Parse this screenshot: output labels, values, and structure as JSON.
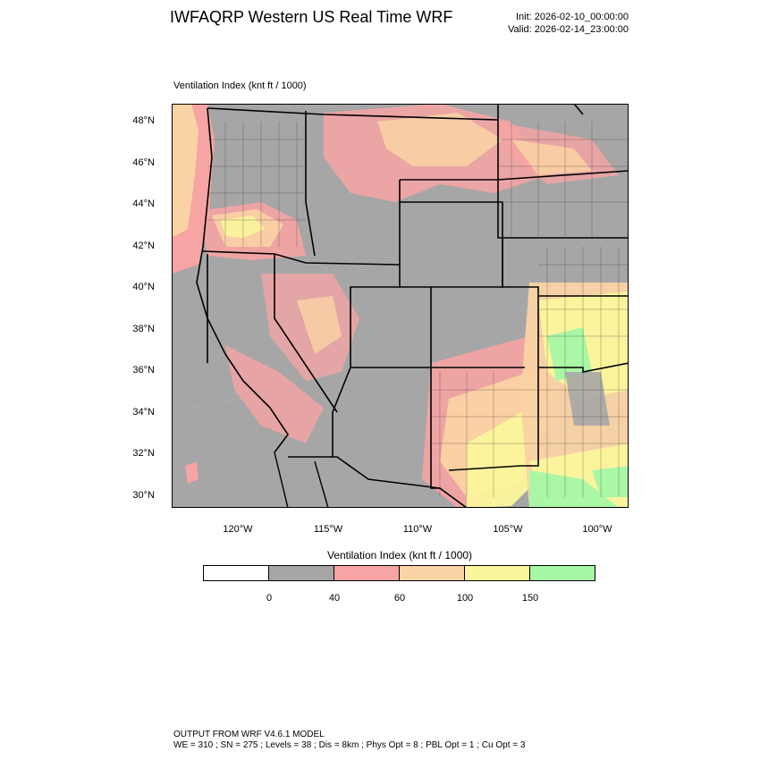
{
  "header": {
    "title": "IWFAQRP Western US Real Time WRF",
    "init": "Init: 2026-02-10_00:00:00",
    "valid": "Valid: 2026-02-14_23:00:00"
  },
  "map": {
    "field_label": "Ventilation Index   (knt ft / 1000)",
    "lat_ticks": [
      "48°N",
      "46°N",
      "44°N",
      "42°N",
      "40°N",
      "38°N",
      "36°N",
      "34°N",
      "32°N",
      "30°N"
    ],
    "lon_ticks": [
      "120°W",
      "115°W",
      "110°W",
      "105°W",
      "100°W"
    ],
    "colors": {
      "ocean_gray": "#a6a6a6",
      "pink": "#f7a4a4",
      "peach": "#fad3a4",
      "yellow": "#fbf59c",
      "green": "#a5f7a5"
    }
  },
  "colorbar": {
    "label": "Ventilation Index   (knt ft / 1000)",
    "colors": [
      "#ffffff",
      "#a6a6a6",
      "#f7a4a4",
      "#fad3a4",
      "#fbf59c",
      "#a5f7a5"
    ],
    "ticks": [
      "0",
      "40",
      "60",
      "100",
      "150"
    ]
  },
  "footer": {
    "line1": "OUTPUT FROM WRF V4.6.1 MODEL",
    "line2": "WE = 310 ; SN = 275 ; Levels = 38 ; Dis = 8km ; Phys Opt = 8 ; PBL Opt = 1 ; Cu Opt = 3"
  }
}
